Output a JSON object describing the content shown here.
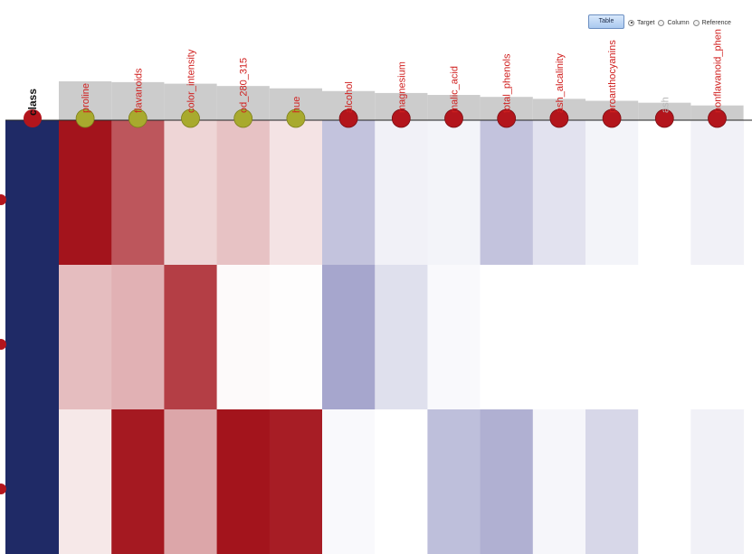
{
  "controls": {
    "table_button": "Table",
    "view_options": [
      {
        "label": "Target",
        "selected": true
      },
      {
        "label": "Column",
        "selected": false
      },
      {
        "label": "Reference",
        "selected": false
      }
    ]
  },
  "colors": {
    "class_column": "#1f2a66",
    "high": "#a3141c",
    "low": "#6f70ae",
    "neutral": "#ffffff",
    "histogram": "#cccccc",
    "marker_red": "#b3151c",
    "marker_olive": "#a8aa2e",
    "label_red": "#d0201f"
  },
  "chart_data": {
    "type": "heatmap",
    "title": "",
    "row_header": "class",
    "columns": [
      {
        "name": "proline",
        "marker": "olive",
        "label_color": "red"
      },
      {
        "name": "flavanoids",
        "marker": "olive",
        "label_color": "red"
      },
      {
        "name": "color_intensity",
        "marker": "olive",
        "label_color": "red"
      },
      {
        "name": "od_280_315",
        "marker": "olive",
        "label_color": "red"
      },
      {
        "name": "hue",
        "marker": "olive",
        "label_color": "red"
      },
      {
        "name": "alcohol",
        "marker": "red",
        "label_color": "red"
      },
      {
        "name": "magnesium",
        "marker": "red",
        "label_color": "red"
      },
      {
        "name": "malic_acid",
        "marker": "red",
        "label_color": "red"
      },
      {
        "name": "total_phenols",
        "marker": "red",
        "label_color": "red"
      },
      {
        "name": "ash_alcalinity",
        "marker": "red",
        "label_color": "red"
      },
      {
        "name": "proanthocyanins",
        "marker": "red",
        "label_color": "red"
      },
      {
        "name": "ash",
        "marker": "red",
        "label_color": "gray"
      },
      {
        "name": "nonflavanoid_phen",
        "marker": "red",
        "label_color": "red"
      }
    ],
    "column_histogram": [
      1.0,
      0.98,
      0.94,
      0.88,
      0.82,
      0.75,
      0.7,
      0.65,
      0.6,
      0.55,
      0.5,
      0.45,
      0.38
    ],
    "rows": 3,
    "values": [
      [
        1.0,
        0.72,
        0.18,
        0.26,
        0.12,
        -0.42,
        -0.1,
        -0.08,
        -0.42,
        -0.2,
        -0.08,
        0.0,
        -0.1
      ],
      [
        0.28,
        0.33,
        0.82,
        0.02,
        0.01,
        -0.62,
        -0.22,
        -0.04,
        0.0,
        0.0,
        0.0,
        0.0,
        0.0
      ],
      [
        0.1,
        0.98,
        0.38,
        1.0,
        0.96,
        -0.04,
        0.0,
        -0.45,
        -0.55,
        -0.06,
        -0.28,
        0.0,
        -0.1
      ]
    ]
  }
}
